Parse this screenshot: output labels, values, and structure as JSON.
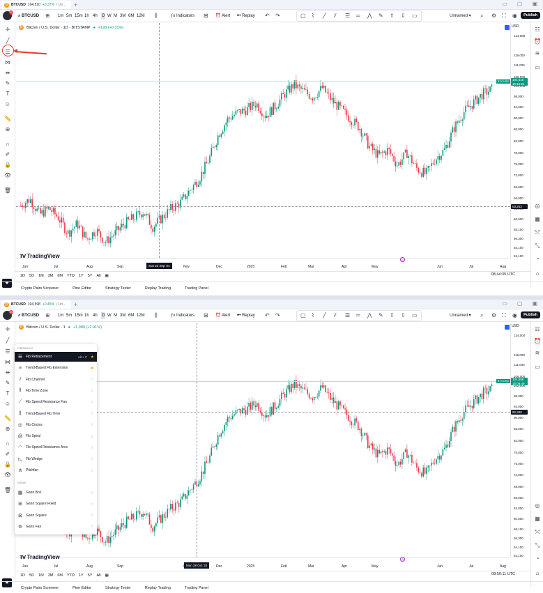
{
  "panels": [
    {
      "tab": {
        "symbol": "BTCUSD",
        "price": "104,510",
        "change": "+0.37%",
        "rest": "/ Un..."
      },
      "toolbar": {
        "symbol": "BTCUSD",
        "intervals": [
          "1m",
          "5m",
          "15m",
          "1h",
          "4h",
          "D",
          "W",
          "M",
          "3M",
          "6M",
          "12M"
        ],
        "indicators": "Indicators",
        "alert": "Alert",
        "replay": "Replay",
        "layout": "Unnamed",
        "publish": "Publish",
        "badge": "10"
      },
      "legend": {
        "title": "Bitcoin / U.S. Dollar · 1D · BITSTAMP",
        "change": "+199 (+0.31%)"
      },
      "price_labels": [
        "124,000",
        "116,000",
        "111,000",
        "106,000",
        "102,000",
        "98,000",
        "94,000",
        "90,000",
        "86,000",
        "82,000",
        "78,000",
        "75,000",
        "72,000",
        "69,000",
        "66,000",
        "63,000",
        "60,500",
        "58,100",
        "56,300",
        "54,100",
        "52,100"
      ],
      "currency": "USD",
      "current_price": {
        "symbol": "BTCUSD",
        "price": "104,510",
        "countdown": "15:15:24"
      },
      "level": "63,253",
      "time_labels": [
        "Jun",
        "Jul",
        "Aug",
        "Sep",
        "Nov",
        "Dec",
        "2025",
        "Feb",
        "Mar",
        "Apr",
        "May",
        "Jun",
        "Jul",
        "Aug"
      ],
      "date_label": "Sun 22 Sep '24",
      "logo": "TradingView",
      "ranges": [
        "1D",
        "5D",
        "1M",
        "3M",
        "6M",
        "YTD",
        "1Y",
        "5Y",
        "All"
      ],
      "clock": "08:44:35 UTC",
      "bottom": [
        "Crypto Pairs Screener",
        "Pine Editor",
        "Strategy Tester",
        "Replay Trading",
        "Trading Panel"
      ],
      "event": "3"
    },
    {
      "tab": {
        "symbol": "BTCUSD",
        "price": "104,598",
        "change": "+0.45%",
        "rest": "/ Un..."
      },
      "toolbar": {
        "symbol": "BTCUSD",
        "intervals": [
          "1m",
          "5m",
          "15m",
          "1h",
          "4h",
          "D",
          "W",
          "M",
          "3M",
          "6M",
          "12M"
        ],
        "indicators": "Indicators",
        "alert": "Alert",
        "replay": "Replay",
        "layout": "Unnamed",
        "publish": "Publish",
        "badge": "10"
      },
      "legend": {
        "title": "Bitcoin / U.S. Dollar · 1",
        "change": "+1,980 (+2.91%)"
      },
      "price_labels": [
        "124,000",
        "116,000",
        "111,000",
        "106,000",
        "102,000",
        "98,000",
        "94,000",
        "90,000",
        "86,000",
        "82,000",
        "78,000",
        "75,000",
        "72,000",
        "69,000",
        "66,000",
        "63,000",
        "60,500",
        "58,100",
        "56,300",
        "54,100",
        "52,100"
      ],
      "currency": "USD",
      "current_price": {
        "symbol": "BTCUSD",
        "price": "104,598",
        "countdown": "15:09:49"
      },
      "level": "92,290",
      "time_labels": [
        "Jun",
        "Jul",
        "Aug",
        "Sep",
        "Oct",
        "Dec",
        "2025",
        "Feb",
        "Mar",
        "Apr",
        "May",
        "Jun",
        "Jul",
        "Aug"
      ],
      "date_label": "Mon 28 Oct '24",
      "logo": "TradingView",
      "ranges": [
        "1D",
        "5D",
        "1M",
        "3M",
        "6M",
        "YTD",
        "1Y",
        "5Y",
        "All"
      ],
      "clock": "08:50:11 UTC",
      "bottom": [
        "Crypto Pairs Screener",
        "Pine Editor",
        "Strategy Tester",
        "Replay Trading",
        "Trading Panel"
      ],
      "event": "3"
    }
  ],
  "fib_menu": {
    "header_fib": "FIBONACCI",
    "header_gann": "GANN",
    "fib_items": [
      {
        "label": "Fib Retracement",
        "hotkey": "Alt + F",
        "icon": "fib-retracement-icon",
        "state": "active"
      },
      {
        "label": "Trend-Based Fib Extension",
        "icon": "fib-extension-icon",
        "state": "fav"
      },
      {
        "label": "Fib Channel",
        "icon": "fib-channel-icon",
        "state": ""
      },
      {
        "label": "Fib Time Zone",
        "icon": "fib-time-zone-icon",
        "state": ""
      },
      {
        "label": "Fib Speed Resistance Fan",
        "icon": "fib-fan-icon",
        "state": ""
      },
      {
        "label": "Trend-Based Fib Time",
        "icon": "fib-time-icon",
        "state": ""
      },
      {
        "label": "Fib Circles",
        "icon": "fib-circles-icon",
        "state": ""
      },
      {
        "label": "Fib Spiral",
        "icon": "fib-spiral-icon",
        "state": ""
      },
      {
        "label": "Fib Speed Resistance Arcs",
        "icon": "fib-arcs-icon",
        "state": ""
      },
      {
        "label": "Fib Wedge",
        "icon": "fib-wedge-icon",
        "state": ""
      },
      {
        "label": "Pitchfan",
        "icon": "pitchfan-icon",
        "state": ""
      }
    ],
    "gann_items": [
      {
        "label": "Gann Box",
        "icon": "gann-box-icon",
        "state": ""
      },
      {
        "label": "Gann Square Fixed",
        "icon": "gann-square-fixed-icon",
        "state": ""
      },
      {
        "label": "Gann Square",
        "icon": "gann-square-icon",
        "state": ""
      },
      {
        "label": "Gann Fan",
        "icon": "gann-fan-icon",
        "state": ""
      }
    ]
  },
  "chart_data": {
    "type": "candlestick",
    "x_labels": [
      "Jun",
      "Jul",
      "Aug",
      "Sep",
      "Nov",
      "Dec",
      "2025",
      "Feb",
      "Mar",
      "Apr",
      "May"
    ],
    "close_path": [
      67000,
      69000,
      64000,
      66000,
      63000,
      58000,
      61000,
      56000,
      59000,
      55000,
      58000,
      61000,
      63000,
      65000,
      60000,
      63000,
      66000,
      68000,
      72000,
      76000,
      82000,
      90000,
      95000,
      97000,
      98000,
      100000,
      96000,
      99000,
      103000,
      106000,
      104000,
      102000,
      105000,
      101000,
      98000,
      95000,
      92000,
      86000,
      83000,
      85000,
      80000,
      84000,
      79000,
      77000,
      82000,
      85000,
      92000,
      97000,
      100000,
      103000,
      104510
    ],
    "colors": {
      "up": "#089981",
      "down": "#f23645"
    }
  }
}
